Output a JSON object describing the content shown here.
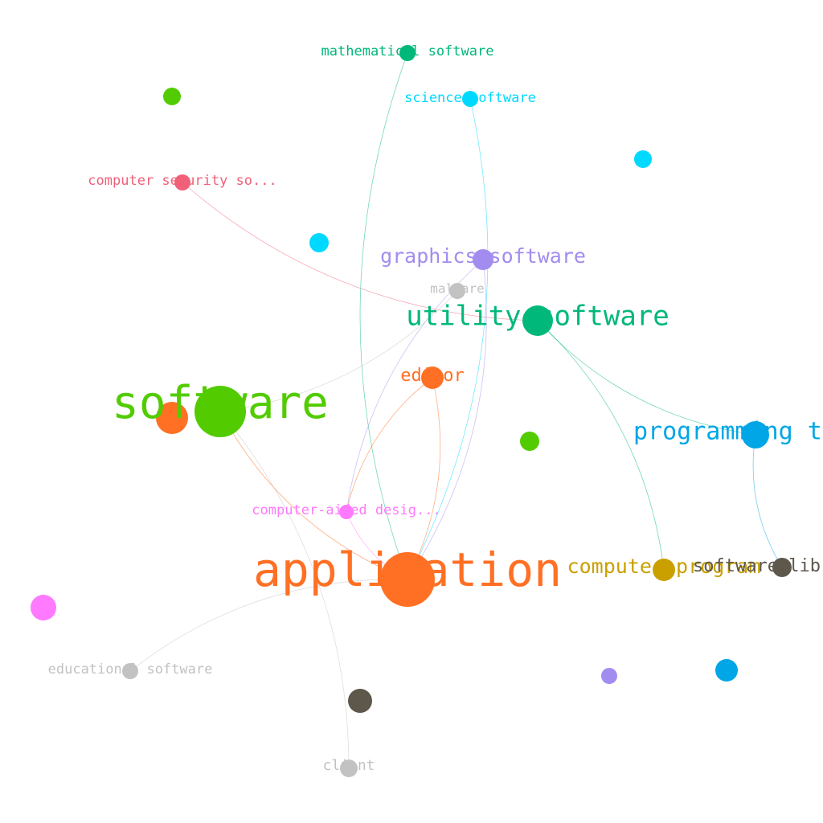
{
  "graph": {
    "colors": {
      "orange": "#FF7024",
      "green": "#52CC00",
      "teal": "#00B87A",
      "cyan": "#00D9FF",
      "blue": "#00A6E6",
      "purple": "#A38CF0",
      "pink": "#F06078",
      "magenta": "#FF7AFF",
      "gold": "#C9A000",
      "gray": "#C2C2C2",
      "brown": "#5E574C"
    },
    "nodes": [
      {
        "id": "application",
        "label": "application",
        "color": "orange",
        "size": "xl"
      },
      {
        "id": "software",
        "label": "software",
        "color": "green",
        "size": "xl"
      },
      {
        "id": "utility_software",
        "label": "utility software",
        "color": "teal",
        "size": "l"
      },
      {
        "id": "programming_tool",
        "label": "programming t",
        "color": "blue",
        "size": "l"
      },
      {
        "id": "graphics_software",
        "label": "graphics software",
        "color": "purple",
        "size": "m"
      },
      {
        "id": "computer_program",
        "label": "computer program",
        "color": "gold",
        "size": "m"
      },
      {
        "id": "software_library",
        "label": "software lib",
        "color": "brown",
        "size": "m"
      },
      {
        "id": "editor",
        "label": "editor",
        "color": "orange",
        "size": "m"
      },
      {
        "id": "mathematical_software",
        "label": "mathematical software",
        "color": "teal",
        "size": "s"
      },
      {
        "id": "science_software",
        "label": "science software",
        "color": "cyan",
        "size": "s"
      },
      {
        "id": "computer_security_software",
        "label": "computer security so...",
        "color": "pink",
        "size": "s"
      },
      {
        "id": "malware",
        "label": "malware",
        "color": "gray",
        "size": "s"
      },
      {
        "id": "computer_aided_design",
        "label": "computer-aided desig...",
        "color": "magenta",
        "size": "s"
      },
      {
        "id": "educational_software",
        "label": "educational software",
        "color": "gray",
        "size": "s"
      },
      {
        "id": "client",
        "label": "client",
        "color": "gray",
        "size": "s"
      },
      {
        "id": "software_orange",
        "label": "",
        "color": "orange",
        "size": "m"
      },
      {
        "id": "unlabeled_green_1",
        "label": "",
        "color": "green",
        "size": "s"
      },
      {
        "id": "unlabeled_cyan_1",
        "label": "",
        "color": "cyan",
        "size": "s"
      },
      {
        "id": "unlabeled_cyan_2",
        "label": "",
        "color": "cyan",
        "size": "s"
      },
      {
        "id": "unlabeled_green_2",
        "label": "",
        "color": "green",
        "size": "s"
      },
      {
        "id": "unlabeled_magenta",
        "label": "",
        "color": "magenta",
        "size": "m"
      },
      {
        "id": "unlabeled_brown",
        "label": "",
        "color": "brown",
        "size": "m"
      },
      {
        "id": "unlabeled_purple",
        "label": "",
        "color": "purple",
        "size": "s"
      },
      {
        "id": "unlabeled_blue",
        "label": "",
        "color": "blue",
        "size": "s"
      }
    ],
    "edges": [
      {
        "from": "mathematical_software",
        "to": "application",
        "color": "teal"
      },
      {
        "from": "science_software",
        "to": "application",
        "color": "cyan"
      },
      {
        "from": "computer_security_software",
        "to": "utility_software",
        "color": "pink"
      },
      {
        "from": "graphics_software",
        "to": "application",
        "color": "purple"
      },
      {
        "from": "graphics_software",
        "to": "computer_aided_design",
        "color": "purple"
      },
      {
        "from": "malware",
        "to": "software",
        "color": "gray"
      },
      {
        "from": "utility_software",
        "to": "programming_tool",
        "color": "teal"
      },
      {
        "from": "utility_software",
        "to": "computer_program",
        "color": "teal"
      },
      {
        "from": "editor",
        "to": "computer_aided_design",
        "color": "orange"
      },
      {
        "from": "editor",
        "to": "application",
        "color": "orange"
      },
      {
        "from": "software",
        "to": "application",
        "color": "orange"
      },
      {
        "from": "software",
        "to": "client",
        "color": "gray"
      },
      {
        "from": "programming_tool",
        "to": "software_library",
        "color": "blue"
      },
      {
        "from": "educational_software",
        "to": "application",
        "color": "gray"
      },
      {
        "from": "computer_aided_design",
        "to": "application",
        "color": "magenta"
      }
    ]
  }
}
